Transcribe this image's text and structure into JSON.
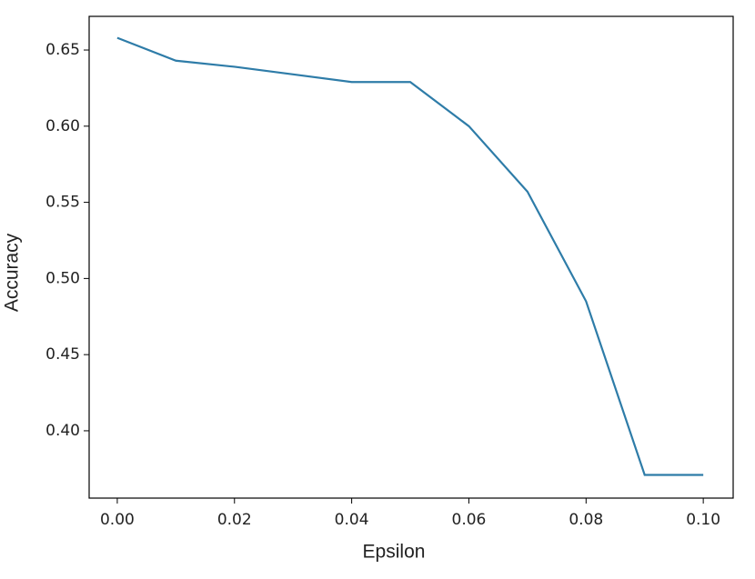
{
  "chart_data": {
    "type": "line",
    "x_label": "Epsilon",
    "y_label": "Accuracy",
    "x": [
      0,
      0.01,
      0.02,
      0.03,
      0.04,
      0.05,
      0.06,
      0.07,
      0.08,
      0.09,
      0.1
    ],
    "values": [
      0.658,
      0.643,
      0.639,
      0.634,
      0.629,
      0.629,
      0.6,
      0.557,
      0.485,
      0.371,
      0.371
    ],
    "color": "#2e7ca8",
    "xlim": [
      -0.0048,
      0.1051
    ],
    "ylim": [
      0.3558,
      0.6721
    ],
    "xticks": [
      {
        "value": 0,
        "label": "0.00"
      },
      0.02,
      0.04,
      0.06,
      0.08,
      {
        "value": 0.1,
        "label": "0.10"
      }
    ],
    "yticks": [
      {
        "value": 0.4,
        "label": "0.40"
      },
      0.45,
      {
        "value": 0.5,
        "label": "0.50"
      },
      0.55,
      {
        "value": 0.6,
        "label": "0.60"
      },
      0.65
    ],
    "grid": false
  }
}
